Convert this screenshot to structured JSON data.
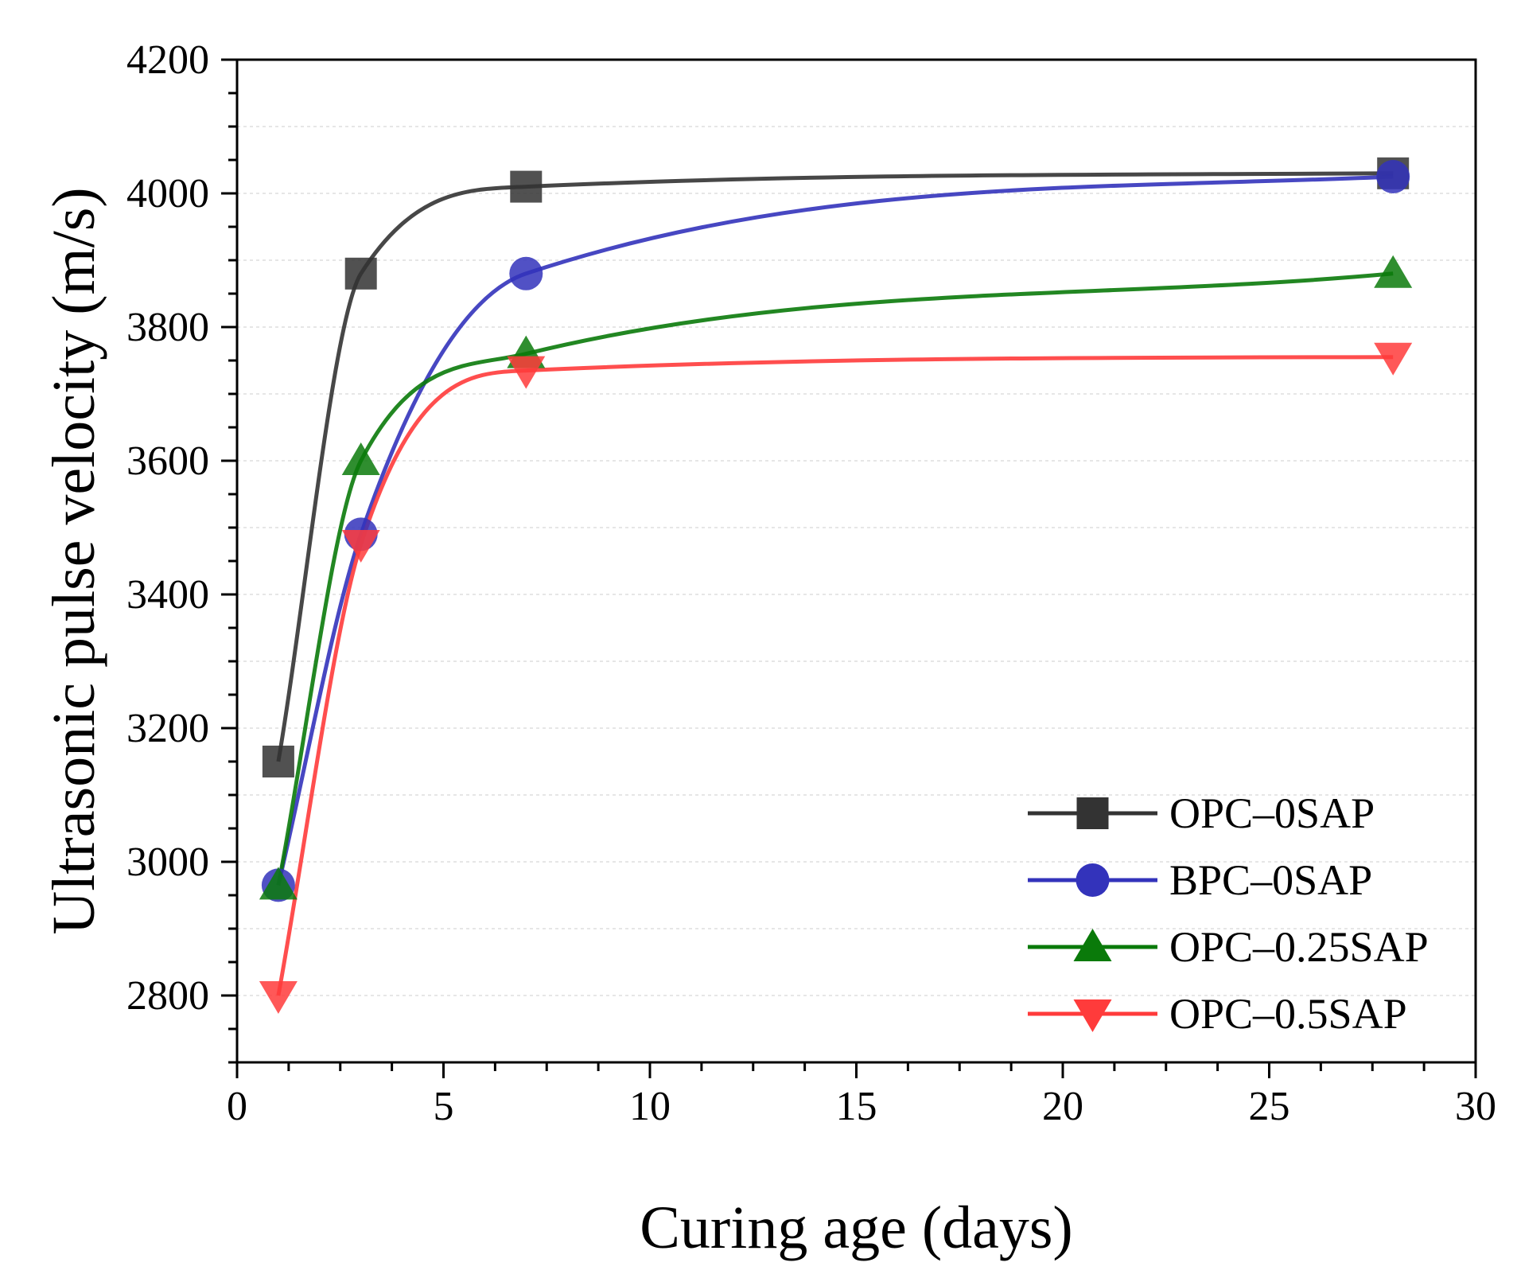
{
  "chart_data": {
    "type": "line",
    "xlabel": "Curing age (days)",
    "ylabel": "Ultrasonic pulse velocity (m/s)",
    "xlim": [
      0,
      30
    ],
    "ylim": [
      2700,
      4200
    ],
    "xticks": [
      0,
      5,
      10,
      15,
      20,
      25,
      30
    ],
    "yticks": [
      2800,
      3000,
      3200,
      3400,
      3600,
      3800,
      4000,
      4200
    ],
    "grid": true,
    "legend_position": "bottom-right",
    "x": [
      1,
      3,
      7,
      28
    ],
    "series": [
      {
        "name": "OPC–0SAP",
        "values": [
          3150,
          3880,
          4010,
          4030
        ],
        "color": "#333333",
        "marker": "square"
      },
      {
        "name": "BPC–0SAP",
        "values": [
          2965,
          3490,
          3880,
          4025
        ],
        "color": "#3333bb",
        "marker": "circle"
      },
      {
        "name": "OPC–0.25SAP",
        "values": [
          2965,
          3600,
          3760,
          3880
        ],
        "color": "#0a7a0a",
        "marker": "triangle-up"
      },
      {
        "name": "OPC–0.5SAP",
        "values": [
          2800,
          3475,
          3735,
          3755
        ],
        "color": "#ff3b3b",
        "marker": "triangle-down"
      }
    ]
  }
}
